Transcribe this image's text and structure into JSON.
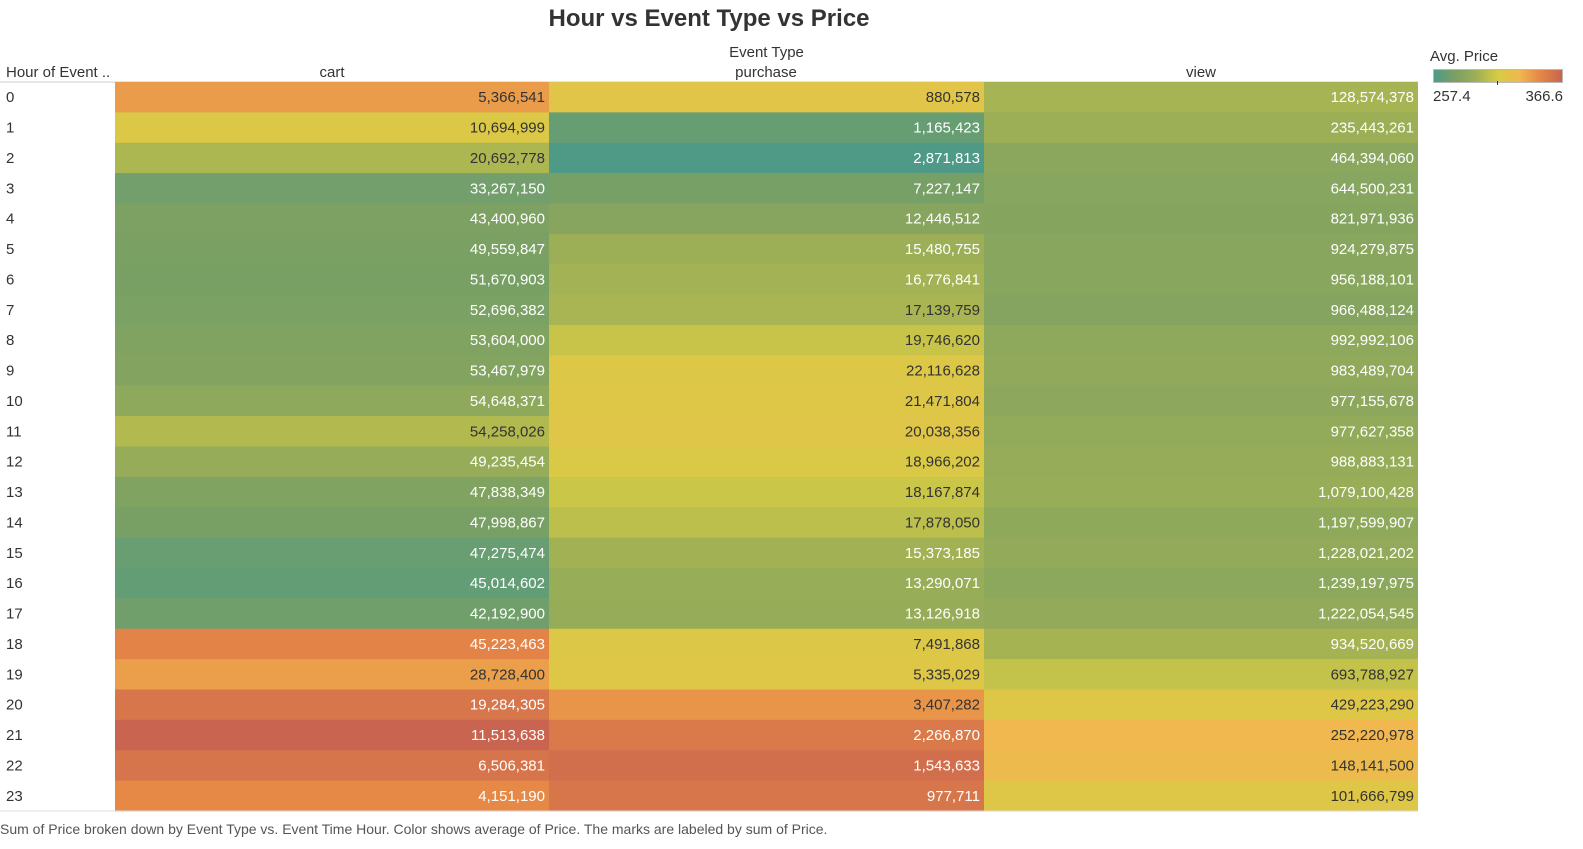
{
  "chart_data": {
    "type": "heatmap",
    "title": "Hour vs Event Type vs Price",
    "column_group_label": "Event Type",
    "row_header_label": "Hour of Event ..",
    "columns": [
      "cart",
      "purchase",
      "view"
    ],
    "rows": [
      "0",
      "1",
      "2",
      "3",
      "4",
      "5",
      "6",
      "7",
      "8",
      "9",
      "10",
      "11",
      "12",
      "13",
      "14",
      "15",
      "16",
      "17",
      "18",
      "19",
      "20",
      "21",
      "22",
      "23"
    ],
    "labels": [
      [
        "5,366,541",
        "880,578",
        "128,574,378"
      ],
      [
        "10,694,999",
        "1,165,423",
        "235,443,261"
      ],
      [
        "20,692,778",
        "2,871,813",
        "464,394,060"
      ],
      [
        "33,267,150",
        "7,227,147",
        "644,500,231"
      ],
      [
        "43,400,960",
        "12,446,512",
        "821,971,936"
      ],
      [
        "49,559,847",
        "15,480,755",
        "924,279,875"
      ],
      [
        "51,670,903",
        "16,776,841",
        "956,188,101"
      ],
      [
        "52,696,382",
        "17,139,759",
        "966,488,124"
      ],
      [
        "53,604,000",
        "19,746,620",
        "992,992,106"
      ],
      [
        "53,467,979",
        "22,116,628",
        "983,489,704"
      ],
      [
        "54,648,371",
        "21,471,804",
        "977,155,678"
      ],
      [
        "54,258,026",
        "20,038,356",
        "977,627,358"
      ],
      [
        "49,235,454",
        "18,966,202",
        "988,883,131"
      ],
      [
        "47,838,349",
        "18,167,874",
        "1,079,100,428"
      ],
      [
        "47,998,867",
        "17,878,050",
        "1,197,599,907"
      ],
      [
        "47,275,474",
        "15,373,185",
        "1,228,021,202"
      ],
      [
        "45,014,602",
        "13,290,071",
        "1,239,197,975"
      ],
      [
        "42,192,900",
        "13,126,918",
        "1,222,054,545"
      ],
      [
        "45,223,463",
        "7,491,868",
        "934,520,669"
      ],
      [
        "28,728,400",
        "5,335,029",
        "693,788,927"
      ],
      [
        "19,284,305",
        "3,407,282",
        "429,223,290"
      ],
      [
        "11,513,638",
        "2,266,870",
        "252,220,978"
      ],
      [
        "6,506,381",
        "1,543,633",
        "148,141,500"
      ],
      [
        "4,151,190",
        "977,711",
        "101,666,799"
      ]
    ],
    "color_values": [
      [
        340.5,
        318.8,
        296.2
      ],
      [
        315.4,
        267.9,
        292.1
      ],
      [
        298.3,
        257.4,
        283.7
      ],
      [
        272.1,
        274.4,
        281.9
      ],
      [
        276.8,
        281.8,
        281.2
      ],
      [
        275.6,
        292.4,
        282.6
      ],
      [
        274.9,
        294.9,
        282.3
      ],
      [
        276.2,
        296.8,
        280.5
      ],
      [
        278.6,
        306.9,
        285.3
      ],
      [
        279.8,
        316.3,
        286.2
      ],
      [
        285.7,
        317.7,
        285.1
      ],
      [
        300.2,
        318.5,
        287.6
      ],
      [
        289.4,
        314.8,
        289.4
      ],
      [
        279.2,
        307.9,
        290.6
      ],
      [
        274.8,
        303.7,
        286.1
      ],
      [
        268.3,
        294.6,
        287.4
      ],
      [
        265.9,
        290.6,
        284.3
      ],
      [
        271.8,
        289.7,
        287.5
      ],
      [
        349.8,
        316.4,
        295.9
      ],
      [
        339.2,
        317.9,
        305.7
      ],
      [
        357.4,
        343.1,
        317.4
      ],
      [
        366.6,
        355.1,
        330.2
      ],
      [
        357.8,
        360.7,
        327.8
      ],
      [
        347.2,
        356.9,
        317.3
      ]
    ],
    "color_legend": {
      "title": "Avg. Price",
      "min": 257.4,
      "max": 366.6,
      "min_label": "257.4",
      "max_label": "366.6",
      "stops": [
        "#4e9a86",
        "#7aa064",
        "#9fb055",
        "#d6cc44",
        "#f0b84e",
        "#e58647",
        "#c8644f"
      ]
    },
    "caption": "Sum of Price broken down by Event Type vs. Event Time Hour.  Color shows average of Price.  The marks are labeled by sum of Price."
  }
}
